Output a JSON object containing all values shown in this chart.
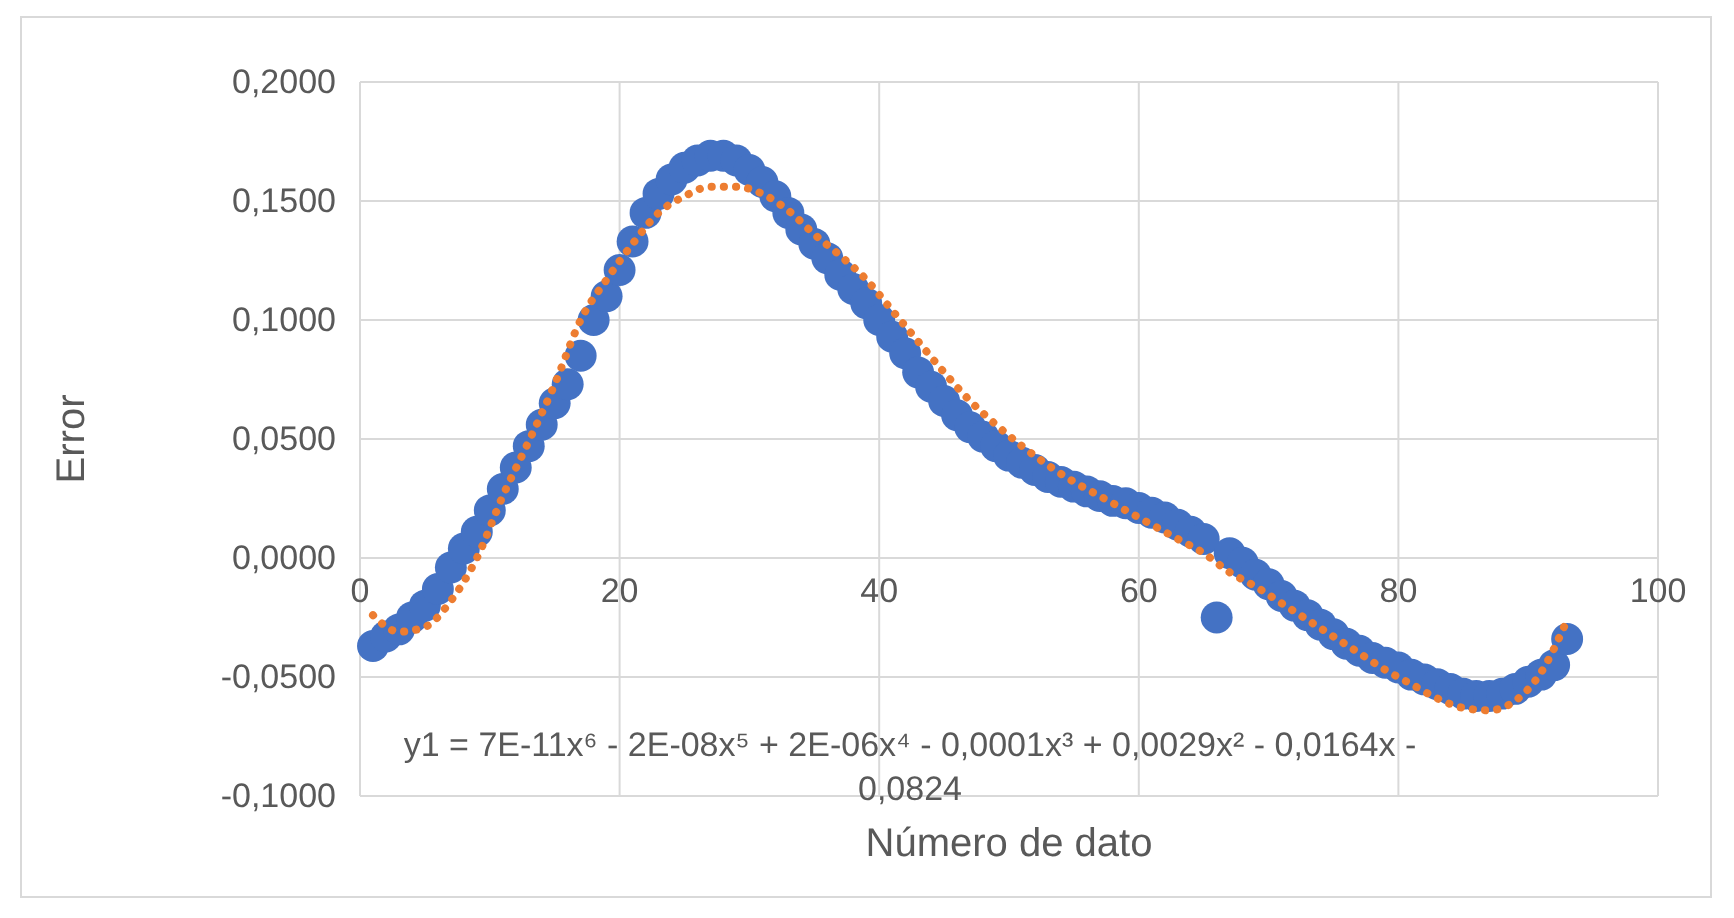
{
  "chart_data": {
    "type": "scatter",
    "xlabel": "Número de dato",
    "ylabel": "Error",
    "xlim": [
      0,
      100
    ],
    "xticks": [
      0,
      20,
      40,
      60,
      80,
      100
    ],
    "ylim": [
      -0.1,
      0.2
    ],
    "yticks": [
      {
        "value": -0.1,
        "label": "-0,1000"
      },
      {
        "value": -0.05,
        "label": "-0,0500"
      },
      {
        "value": 0,
        "label": "0,0000"
      },
      {
        "value": 0.05,
        "label": "0,0500"
      },
      {
        "value": 0.1,
        "label": "0,1000"
      },
      {
        "value": 0.15,
        "label": "0,1500"
      },
      {
        "value": 0.2,
        "label": "0,2000"
      }
    ],
    "grid": true,
    "annotations": [
      "y1 = 7E-11x⁶ - 2E-08x⁵ + 2E-06x⁴ - 0,0001x³ + 0,0029x² - 0,0164x - 0,0824"
    ],
    "series": [
      {
        "color": "#4472c4",
        "marker": "circle",
        "x": [
          1,
          2,
          3,
          4,
          5,
          6,
          7,
          8,
          9,
          10,
          11,
          12,
          13,
          14,
          15,
          16,
          17,
          18,
          19,
          20,
          21,
          22,
          23,
          24,
          25,
          26,
          27,
          28,
          29,
          30,
          31,
          32,
          33,
          34,
          35,
          36,
          37,
          38,
          39,
          40,
          41,
          42,
          43,
          44,
          45,
          46,
          47,
          48,
          49,
          50,
          51,
          52,
          53,
          54,
          55,
          56,
          57,
          58,
          59,
          60,
          61,
          62,
          63,
          64,
          65,
          66,
          67,
          68,
          69,
          70,
          71,
          72,
          73,
          74,
          75,
          76,
          77,
          78,
          79,
          80,
          81,
          82,
          83,
          84,
          85,
          86,
          87,
          88,
          89,
          90,
          91,
          92,
          93
        ],
        "values": [
          -0.037,
          -0.033,
          -0.03,
          -0.025,
          -0.02,
          -0.013,
          -0.004,
          0.004,
          0.011,
          0.02,
          0.029,
          0.038,
          0.047,
          0.056,
          0.065,
          0.073,
          0.085,
          0.1,
          0.11,
          0.121,
          0.133,
          0.145,
          0.153,
          0.159,
          0.164,
          0.167,
          0.169,
          0.169,
          0.167,
          0.163,
          0.158,
          0.152,
          0.145,
          0.138,
          0.132,
          0.126,
          0.119,
          0.113,
          0.107,
          0.1,
          0.093,
          0.086,
          0.078,
          0.072,
          0.066,
          0.06,
          0.055,
          0.051,
          0.047,
          0.043,
          0.04,
          0.037,
          0.034,
          0.032,
          0.03,
          0.028,
          0.026,
          0.024,
          0.023,
          0.021,
          0.019,
          0.017,
          0.014,
          0.011,
          0.008,
          -0.025,
          0.002,
          -0.002,
          -0.007,
          -0.011,
          -0.016,
          -0.02,
          -0.024,
          -0.028,
          -0.032,
          -0.036,
          -0.039,
          -0.042,
          -0.044,
          -0.046,
          -0.049,
          -0.051,
          -0.053,
          -0.055,
          -0.057,
          -0.058,
          -0.058,
          -0.057,
          -0.055,
          -0.052,
          -0.049,
          -0.045,
          -0.034
        ]
      },
      {
        "type": "line",
        "color": "#ed7d31",
        "line_style": "dotted",
        "x": [
          1,
          3,
          5,
          7,
          9,
          11,
          13,
          15,
          17,
          19,
          21,
          23,
          25,
          27,
          29,
          31,
          33,
          35,
          37,
          39,
          41,
          43,
          45,
          47,
          49,
          51,
          53,
          55,
          57,
          59,
          61,
          63,
          65,
          67,
          69,
          71,
          73,
          75,
          77,
          79,
          81,
          83,
          85,
          87,
          89,
          91,
          93
        ],
        "values": [
          -0.024,
          -0.031,
          -0.029,
          -0.018,
          0,
          0.026,
          0.049,
          0.073,
          0.1,
          0.117,
          0.132,
          0.145,
          0.152,
          0.156,
          0.156,
          0.153,
          0.146,
          0.136,
          0.127,
          0.117,
          0.104,
          0.091,
          0.078,
          0.066,
          0.056,
          0.047,
          0.039,
          0.032,
          0.026,
          0.02,
          0.014,
          0.008,
          0.002,
          -0.006,
          -0.012,
          -0.019,
          -0.026,
          -0.033,
          -0.04,
          -0.047,
          -0.053,
          -0.059,
          -0.063,
          -0.064,
          -0.06,
          -0.048,
          -0.026
        ]
      }
    ]
  }
}
